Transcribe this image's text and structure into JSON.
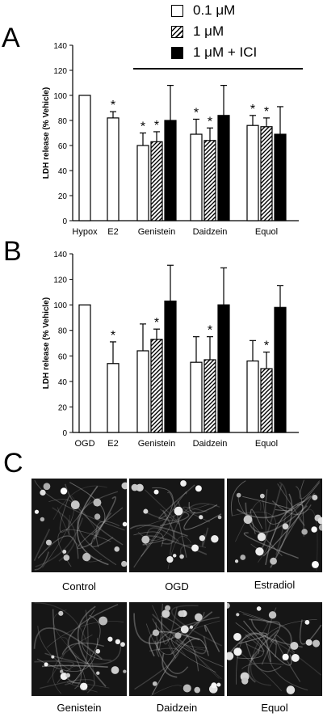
{
  "panel_letters": {
    "a": "A",
    "b": "B",
    "c": "C"
  },
  "legend": [
    {
      "label": "0.1 μM",
      "style": "open"
    },
    {
      "label": "1 μM",
      "style": "hatched"
    },
    {
      "label": "1 μM + ICI",
      "style": "solid"
    }
  ],
  "chart_data": [
    {
      "type": "bar",
      "panel": "A",
      "ylabel": "LDH release (% Vehicle)",
      "ylim": [
        0,
        140
      ],
      "yticks": [
        "0",
        "20",
        "40",
        "60",
        "80",
        "100",
        "120",
        "140"
      ],
      "categories": [
        "Hypox",
        "E2",
        "Genistein",
        "Daidzein",
        "Equol"
      ],
      "groups": [
        {
          "category": "Hypox",
          "bars": [
            {
              "series": "0.1 μM",
              "value": 100,
              "error": 0,
              "sig": false
            }
          ]
        },
        {
          "category": "E2",
          "bars": [
            {
              "series": "0.1 μM",
              "value": 82,
              "error": 5,
              "sig": true
            }
          ]
        },
        {
          "category": "Genistein",
          "bars": [
            {
              "series": "0.1 μM",
              "value": 60,
              "error": 10,
              "sig": true
            },
            {
              "series": "1 μM",
              "value": 63,
              "error": 8,
              "sig": true
            },
            {
              "series": "1 μM + ICI",
              "value": 80,
              "error": 28,
              "sig": false
            }
          ]
        },
        {
          "category": "Daidzein",
          "bars": [
            {
              "series": "0.1 μM",
              "value": 69,
              "error": 12,
              "sig": true
            },
            {
              "series": "1 μM",
              "value": 64,
              "error": 10,
              "sig": true
            },
            {
              "series": "1 μM + ICI",
              "value": 84,
              "error": 24,
              "sig": false
            }
          ]
        },
        {
          "category": "Equol",
          "bars": [
            {
              "series": "0.1 μM",
              "value": 76,
              "error": 8,
              "sig": true
            },
            {
              "series": "1 μM",
              "value": 75,
              "error": 7,
              "sig": true
            },
            {
              "series": "1 μM + ICI",
              "value": 69,
              "error": 22,
              "sig": false
            }
          ]
        }
      ],
      "bracket_over": [
        "Genistein",
        "Equol"
      ],
      "significance_marker": "*"
    },
    {
      "type": "bar",
      "panel": "B",
      "ylabel": "LDH release (% Vehicle)",
      "ylim": [
        0,
        140
      ],
      "yticks": [
        "0",
        "20",
        "40",
        "60",
        "80",
        "100",
        "120",
        "140"
      ],
      "categories": [
        "OGD",
        "E2",
        "Genistein",
        "Daidzein",
        "Equol"
      ],
      "groups": [
        {
          "category": "OGD",
          "bars": [
            {
              "series": "0.1 μM",
              "value": 100,
              "error": 0,
              "sig": false
            }
          ]
        },
        {
          "category": "E2",
          "bars": [
            {
              "series": "0.1 μM",
              "value": 54,
              "error": 17,
              "sig": true
            }
          ]
        },
        {
          "category": "Genistein",
          "bars": [
            {
              "series": "0.1 μM",
              "value": 64,
              "error": 21,
              "sig": false
            },
            {
              "series": "1 μM",
              "value": 73,
              "error": 8,
              "sig": true
            },
            {
              "series": "1 μM + ICI",
              "value": 103,
              "error": 28,
              "sig": false
            }
          ]
        },
        {
          "category": "Daidzein",
          "bars": [
            {
              "series": "0.1 μM",
              "value": 55,
              "error": 20,
              "sig": false
            },
            {
              "series": "1 μM",
              "value": 57,
              "error": 18,
              "sig": true
            },
            {
              "series": "1 μM + ICI",
              "value": 100,
              "error": 29,
              "sig": false
            }
          ]
        },
        {
          "category": "Equol",
          "bars": [
            {
              "series": "0.1 μM",
              "value": 56,
              "error": 16,
              "sig": false
            },
            {
              "series": "1 μM",
              "value": 50,
              "error": 13,
              "sig": true
            },
            {
              "series": "1 μM + ICI",
              "value": 98,
              "error": 17,
              "sig": false
            }
          ]
        }
      ],
      "significance_marker": "*"
    }
  ],
  "micrographs": {
    "top_row": [
      "Control",
      "OGD",
      "Estradiol"
    ],
    "bottom_row": [
      "Genistein",
      "Daidzein",
      "Equol"
    ]
  }
}
